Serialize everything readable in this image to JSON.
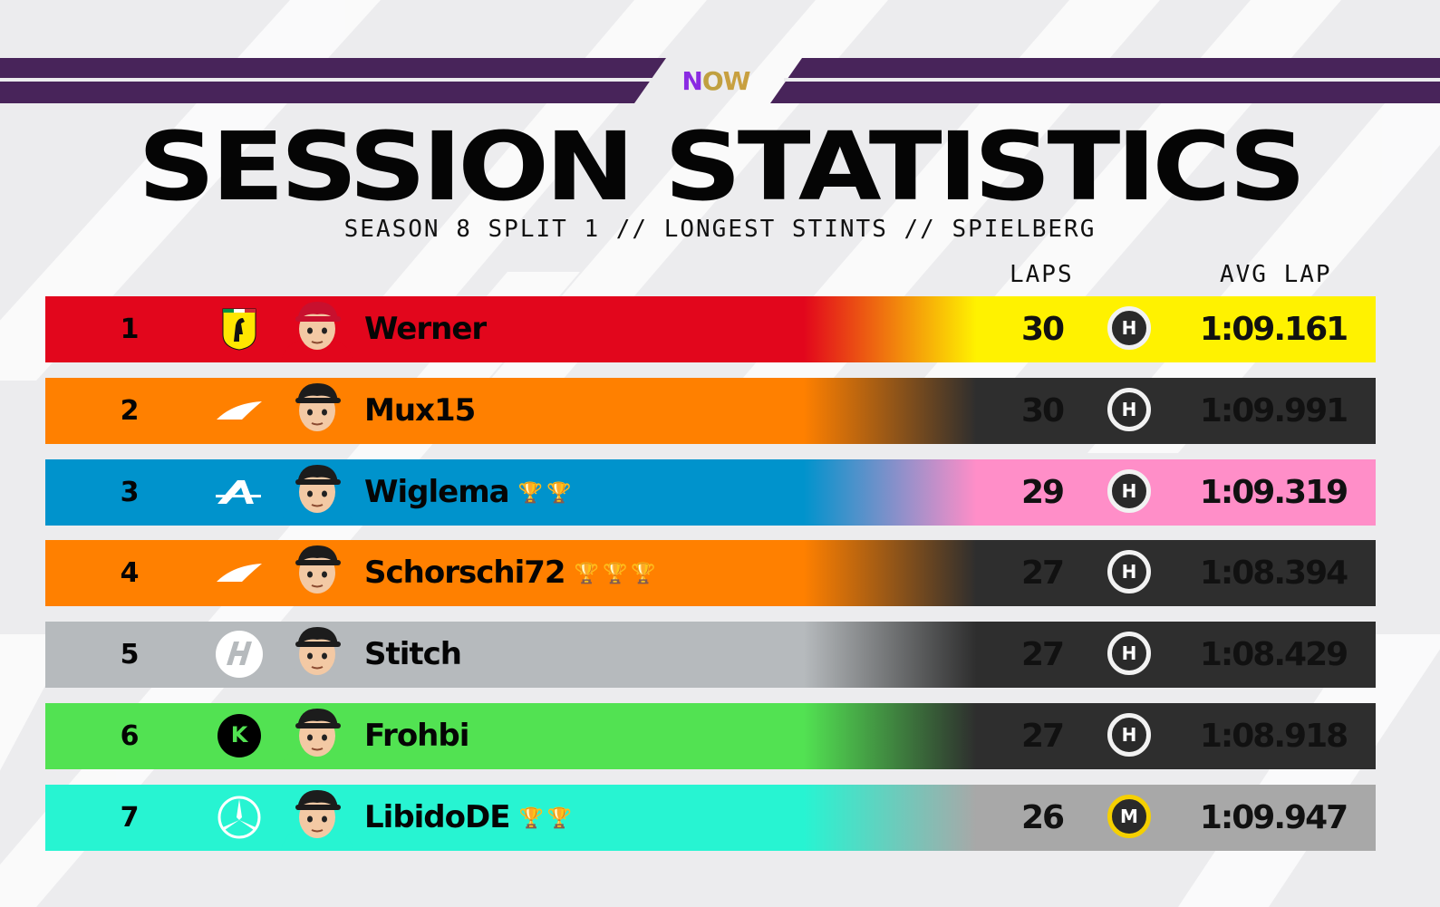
{
  "colors": {
    "purple_bar": "#48245a",
    "background": "#ececee"
  },
  "brand": {
    "logo_text": "NOW",
    "logo_part1": "N",
    "logo_part2": "O",
    "logo_part3": "W"
  },
  "header": {
    "title": "SESSION STATISTICS",
    "subtitle": "SEASON 8 SPLIT 1 // LONGEST STINTS // SPIELBERG"
  },
  "columns": {
    "laps": "LAPS",
    "avg_lap": "AVG LAP"
  },
  "rows": [
    {
      "position": "1",
      "team_icon": "ferrari-icon",
      "driver": "Werner",
      "trophies": "",
      "laps": "30",
      "tyre": "H",
      "avg_lap": "1:09.161",
      "team_color": "#e2061c",
      "stat_color": "#fff200",
      "stat_text_color": "#111111",
      "tyre_ring": "#f2f2f2"
    },
    {
      "position": "2",
      "team_icon": "mclaren-icon",
      "driver": "Mux15",
      "trophies": "",
      "laps": "30",
      "tyre": "H",
      "avg_lap": "1:09.991",
      "team_color": "#ff8000",
      "stat_color": "#2e2e2e",
      "stat_text_color": "#111111",
      "tyre_ring": "#f2f2f2"
    },
    {
      "position": "3",
      "team_icon": "alpine-icon",
      "driver": "Wiglema",
      "trophies": "🏆🏆",
      "laps": "29",
      "tyre": "H",
      "avg_lap": "1:09.319",
      "team_color": "#0093cc",
      "stat_color": "#ff8ec8",
      "stat_text_color": "#111111",
      "tyre_ring": "#f2f2f2"
    },
    {
      "position": "4",
      "team_icon": "mclaren-icon",
      "driver": "Schorschi72",
      "trophies": "🏆🏆🏆",
      "laps": "27",
      "tyre": "H",
      "avg_lap": "1:08.394",
      "team_color": "#ff8000",
      "stat_color": "#2e2e2e",
      "stat_text_color": "#111111",
      "tyre_ring": "#f2f2f2"
    },
    {
      "position": "5",
      "team_icon": "haas-icon",
      "driver": "Stitch",
      "trophies": "",
      "laps": "27",
      "tyre": "H",
      "avg_lap": "1:08.429",
      "team_color": "#b6babd",
      "stat_color": "#2e2e2e",
      "stat_text_color": "#111111",
      "tyre_ring": "#f2f2f2"
    },
    {
      "position": "6",
      "team_icon": "sauber-icon",
      "driver": "Frohbi",
      "trophies": "",
      "laps": "27",
      "tyre": "H",
      "avg_lap": "1:08.918",
      "team_color": "#52e252",
      "stat_color": "#2e2e2e",
      "stat_text_color": "#111111",
      "tyre_ring": "#f2f2f2"
    },
    {
      "position": "7",
      "team_icon": "mercedes-icon",
      "driver": "LibidoDE",
      "trophies": "🏆🏆",
      "laps": "26",
      "tyre": "M",
      "avg_lap": "1:09.947",
      "team_color": "#27f4d2",
      "stat_color": "#a8a8a8",
      "stat_text_color": "#111111",
      "tyre_ring": "#f5d000"
    }
  ]
}
